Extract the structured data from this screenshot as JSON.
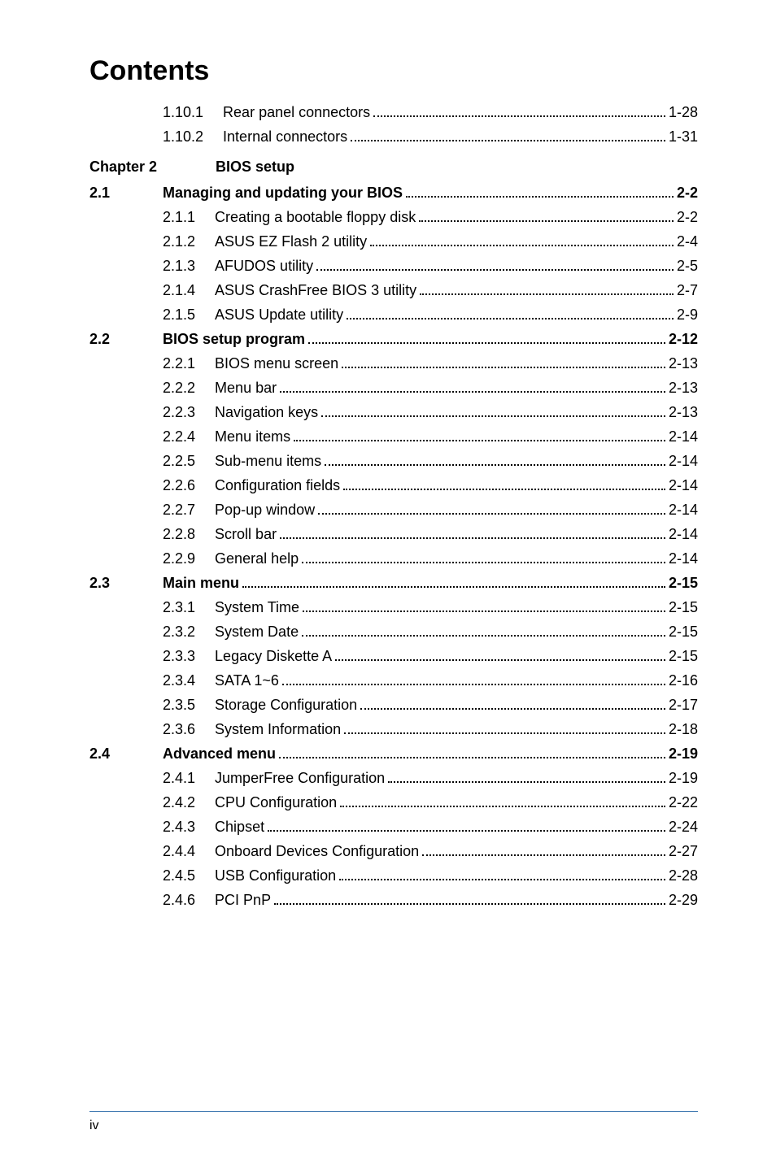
{
  "title": "Contents",
  "pre_rows": [
    {
      "sub": "1.10.1",
      "label": "Rear panel connectors",
      "page": "1-28"
    },
    {
      "sub": "1.10.2",
      "label": "Internal connectors",
      "page": "1-31"
    }
  ],
  "chapter": {
    "num": "Chapter 2",
    "label": "BIOS setup"
  },
  "sections": [
    {
      "num": "2.1",
      "label": "Managing and updating your BIOS",
      "page": "2-2",
      "items": [
        {
          "sub": "2.1.1",
          "label": "Creating a bootable floppy disk",
          "page": "2-2"
        },
        {
          "sub": "2.1.2",
          "label": "ASUS EZ Flash 2 utility",
          "page": "2-4"
        },
        {
          "sub": "2.1.3",
          "label": "AFUDOS utility",
          "page": "2-5"
        },
        {
          "sub": "2.1.4",
          "label": "ASUS CrashFree BIOS 3 utility",
          "page": "2-7"
        },
        {
          "sub": "2.1.5",
          "label": "ASUS Update utility",
          "page": "2-9"
        }
      ]
    },
    {
      "num": "2.2",
      "label": "BIOS setup program",
      "page": "2-12",
      "items": [
        {
          "sub": "2.2.1",
          "label": "BIOS menu screen",
          "page": "2-13"
        },
        {
          "sub": "2.2.2",
          "label": "Menu bar",
          "page": "2-13"
        },
        {
          "sub": "2.2.3",
          "label": "Navigation keys",
          "page": "2-13"
        },
        {
          "sub": "2.2.4",
          "label": "Menu items",
          "page": "2-14"
        },
        {
          "sub": "2.2.5",
          "label": "Sub-menu items",
          "page": "2-14"
        },
        {
          "sub": "2.2.6",
          "label": "Configuration fields",
          "page": "2-14"
        },
        {
          "sub": "2.2.7",
          "label": "Pop-up window",
          "page": "2-14"
        },
        {
          "sub": "2.2.8",
          "label": "Scroll bar",
          "page": "2-14"
        },
        {
          "sub": "2.2.9",
          "label": "General help",
          "page": "2-14"
        }
      ]
    },
    {
      "num": "2.3",
      "label": "Main menu",
      "page": "2-15",
      "items": [
        {
          "sub": "2.3.1",
          "label": "System Time",
          "page": "2-15"
        },
        {
          "sub": "2.3.2",
          "label": "System Date",
          "page": "2-15"
        },
        {
          "sub": "2.3.3",
          "label": "Legacy Diskette A",
          "page": "2-15"
        },
        {
          "sub": "2.3.4",
          "label": "SATA 1~6",
          "page": "2-16"
        },
        {
          "sub": "2.3.5",
          "label": "Storage Configuration",
          "page": "2-17"
        },
        {
          "sub": "2.3.6",
          "label": "System Information",
          "page": "2-18"
        }
      ]
    },
    {
      "num": "2.4",
      "label": "Advanced menu",
      "page": "2-19",
      "items": [
        {
          "sub": "2.4.1",
          "label": "JumperFree Configuration",
          "page": "2-19"
        },
        {
          "sub": "2.4.2",
          "label": "CPU Configuration",
          "page": "2-22"
        },
        {
          "sub": "2.4.3",
          "label": "Chipset",
          "page": "2-24"
        },
        {
          "sub": "2.4.4",
          "label": "Onboard Devices Configuration",
          "page": "2-27"
        },
        {
          "sub": "2.4.5",
          "label": "USB Configuration",
          "page": "2-28"
        },
        {
          "sub": "2.4.6",
          "label": "PCI PnP",
          "page": "2-29"
        }
      ]
    }
  ],
  "footer": "iv",
  "style": {
    "background": "#ffffff",
    "text_color": "#000000",
    "rule_color": "#2a6aa8",
    "title_fontsize": 34,
    "body_fontsize": 18,
    "footer_fontsize": 16,
    "leader_style": "dotted"
  }
}
